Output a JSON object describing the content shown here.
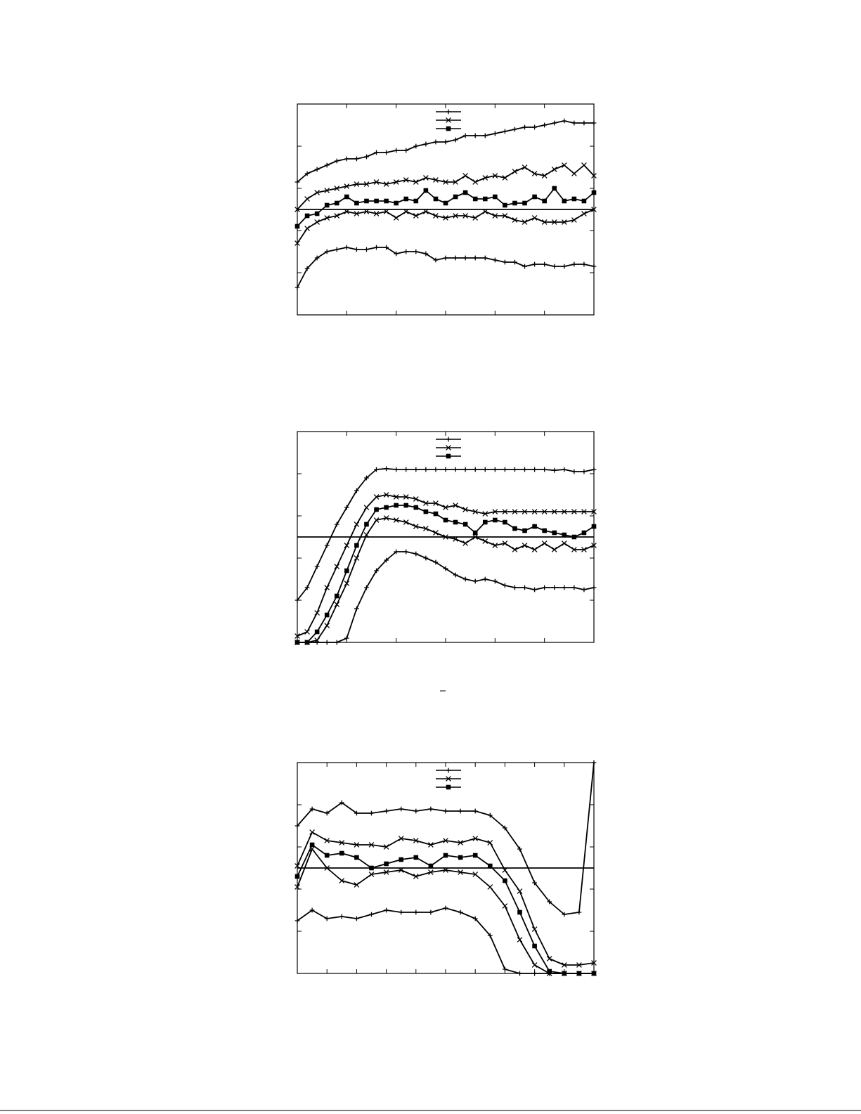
{
  "chart_data": [
    {
      "type": "line",
      "title": "",
      "xlabel": "",
      "ylabel": "",
      "xlim": [
        0,
        30
      ],
      "ylim": [
        0,
        5
      ],
      "grid": false,
      "legend": "top-center",
      "reference_line": 2.5,
      "series": [
        {
          "marker": "plus",
          "values": [
            3.15,
            3.35,
            3.45,
            3.55,
            3.65,
            3.7,
            3.7,
            3.75,
            3.85,
            3.85,
            3.9,
            3.9,
            4.0,
            4.05,
            4.1,
            4.1,
            4.15,
            4.25,
            4.25,
            4.25,
            4.3,
            4.35,
            4.4,
            4.45,
            4.45,
            4.5,
            4.55,
            4.6,
            4.55,
            4.55,
            4.55
          ]
        },
        {
          "marker": "cross",
          "values": [
            2.5,
            2.75,
            2.9,
            2.95,
            3.0,
            3.05,
            3.1,
            3.1,
            3.15,
            3.1,
            3.15,
            3.2,
            3.15,
            3.25,
            3.2,
            3.15,
            3.15,
            3.3,
            3.15,
            3.25,
            3.3,
            3.25,
            3.4,
            3.5,
            3.35,
            3.3,
            3.45,
            3.55,
            3.35,
            3.55,
            3.3
          ]
        },
        {
          "marker": "box",
          "values": [
            2.1,
            2.35,
            2.4,
            2.6,
            2.65,
            2.8,
            2.65,
            2.7,
            2.7,
            2.7,
            2.65,
            2.75,
            2.7,
            2.95,
            2.75,
            2.65,
            2.8,
            2.9,
            2.75,
            2.75,
            2.8,
            2.6,
            2.65,
            2.65,
            2.8,
            2.7,
            3.0,
            2.7,
            2.75,
            2.7,
            2.9
          ]
        },
        {
          "marker": "cross",
          "values": [
            1.7,
            2.05,
            2.2,
            2.3,
            2.35,
            2.45,
            2.4,
            2.45,
            2.4,
            2.45,
            2.3,
            2.45,
            2.35,
            2.45,
            2.35,
            2.3,
            2.35,
            2.35,
            2.3,
            2.45,
            2.35,
            2.35,
            2.25,
            2.2,
            2.3,
            2.2,
            2.2,
            2.2,
            2.25,
            2.4,
            2.5
          ]
        },
        {
          "marker": "plus",
          "values": [
            0.65,
            1.1,
            1.35,
            1.5,
            1.55,
            1.6,
            1.55,
            1.55,
            1.6,
            1.6,
            1.45,
            1.5,
            1.5,
            1.45,
            1.3,
            1.35,
            1.35,
            1.35,
            1.35,
            1.35,
            1.3,
            1.25,
            1.25,
            1.15,
            1.2,
            1.2,
            1.15,
            1.15,
            1.2,
            1.2,
            1.15
          ]
        }
      ]
    },
    {
      "type": "line",
      "title": "",
      "xlabel": "",
      "ylabel": "",
      "xlim": [
        0,
        30
      ],
      "ylim": [
        0,
        5
      ],
      "grid": false,
      "legend": "top-center",
      "reference_line": 2.5,
      "series": [
        {
          "marker": "plus",
          "values": [
            1.0,
            1.3,
            1.8,
            2.3,
            2.8,
            3.2,
            3.6,
            3.9,
            4.1,
            4.12,
            4.1,
            4.1,
            4.1,
            4.1,
            4.1,
            4.1,
            4.1,
            4.1,
            4.1,
            4.1,
            4.1,
            4.1,
            4.1,
            4.1,
            4.1,
            4.1,
            4.08,
            4.1,
            4.05,
            4.05,
            4.1
          ]
        },
        {
          "marker": "cross",
          "values": [
            0.15,
            0.25,
            0.7,
            1.3,
            1.8,
            2.3,
            2.8,
            3.2,
            3.45,
            3.5,
            3.45,
            3.45,
            3.4,
            3.3,
            3.3,
            3.2,
            3.25,
            3.15,
            3.1,
            3.05,
            3.1,
            3.1,
            3.1,
            3.1,
            3.1,
            3.1,
            3.1,
            3.1,
            3.1,
            3.1,
            3.1
          ]
        },
        {
          "marker": "box",
          "values": [
            0.0,
            0.0,
            0.25,
            0.65,
            1.1,
            1.7,
            2.3,
            2.8,
            3.15,
            3.2,
            3.25,
            3.25,
            3.2,
            3.1,
            3.05,
            2.9,
            2.85,
            2.8,
            2.6,
            2.85,
            2.9,
            2.85,
            2.7,
            2.65,
            2.75,
            2.65,
            2.6,
            2.55,
            2.5,
            2.6,
            2.75
          ]
        },
        {
          "marker": "cross",
          "values": [
            0.0,
            0.0,
            0.05,
            0.4,
            0.9,
            1.4,
            2.0,
            2.55,
            2.9,
            2.95,
            2.9,
            2.85,
            2.75,
            2.7,
            2.6,
            2.5,
            2.45,
            2.35,
            2.5,
            2.4,
            2.3,
            2.35,
            2.2,
            2.3,
            2.2,
            2.35,
            2.2,
            2.35,
            2.2,
            2.2,
            2.3
          ]
        },
        {
          "marker": "plus",
          "values": [
            0.0,
            0.0,
            0.0,
            0.0,
            0.0,
            0.1,
            0.8,
            1.3,
            1.7,
            1.95,
            2.15,
            2.15,
            2.1,
            2.0,
            1.9,
            1.75,
            1.6,
            1.5,
            1.45,
            1.5,
            1.45,
            1.35,
            1.3,
            1.3,
            1.25,
            1.3,
            1.3,
            1.3,
            1.3,
            1.25,
            1.3
          ]
        }
      ]
    },
    {
      "type": "line",
      "title": "",
      "xlabel": "",
      "ylabel": "",
      "xlim": [
        0,
        20
      ],
      "ylim": [
        0,
        5
      ],
      "grid": false,
      "legend": "top-center",
      "reference_line": 2.5,
      "series": [
        {
          "marker": "plus",
          "values": [
            3.5,
            3.9,
            3.8,
            4.05,
            3.8,
            3.8,
            3.85,
            3.9,
            3.85,
            3.9,
            3.85,
            3.85,
            3.85,
            3.75,
            3.45,
            2.95,
            2.15,
            1.7,
            1.4,
            1.45,
            5.0
          ]
        },
        {
          "marker": "cross",
          "values": [
            2.55,
            3.35,
            3.15,
            3.1,
            3.05,
            3.05,
            3.0,
            3.2,
            3.15,
            3.05,
            3.15,
            3.1,
            3.2,
            3.1,
            2.45,
            1.95,
            1.05,
            0.35,
            0.2,
            0.2,
            0.25
          ]
        },
        {
          "marker": "box",
          "values": [
            2.3,
            3.05,
            2.8,
            2.85,
            2.75,
            2.5,
            2.6,
            2.7,
            2.75,
            2.55,
            2.8,
            2.75,
            2.8,
            2.55,
            2.2,
            1.45,
            0.65,
            0.05,
            0.0,
            0.0,
            0.0
          ]
        },
        {
          "marker": "cross",
          "values": [
            2.05,
            2.95,
            2.5,
            2.2,
            2.1,
            2.35,
            2.4,
            2.45,
            2.3,
            2.4,
            2.45,
            2.4,
            2.35,
            2.05,
            1.6,
            0.8,
            0.2,
            0.0,
            0.0,
            0.0,
            0.0
          ]
        },
        {
          "marker": "plus",
          "values": [
            1.25,
            1.5,
            1.3,
            1.35,
            1.3,
            1.4,
            1.5,
            1.45,
            1.45,
            1.45,
            1.55,
            1.45,
            1.3,
            0.9,
            0.1,
            0.0,
            0.0,
            0.0,
            0.0,
            0.0,
            0.0
          ]
        }
      ]
    }
  ]
}
